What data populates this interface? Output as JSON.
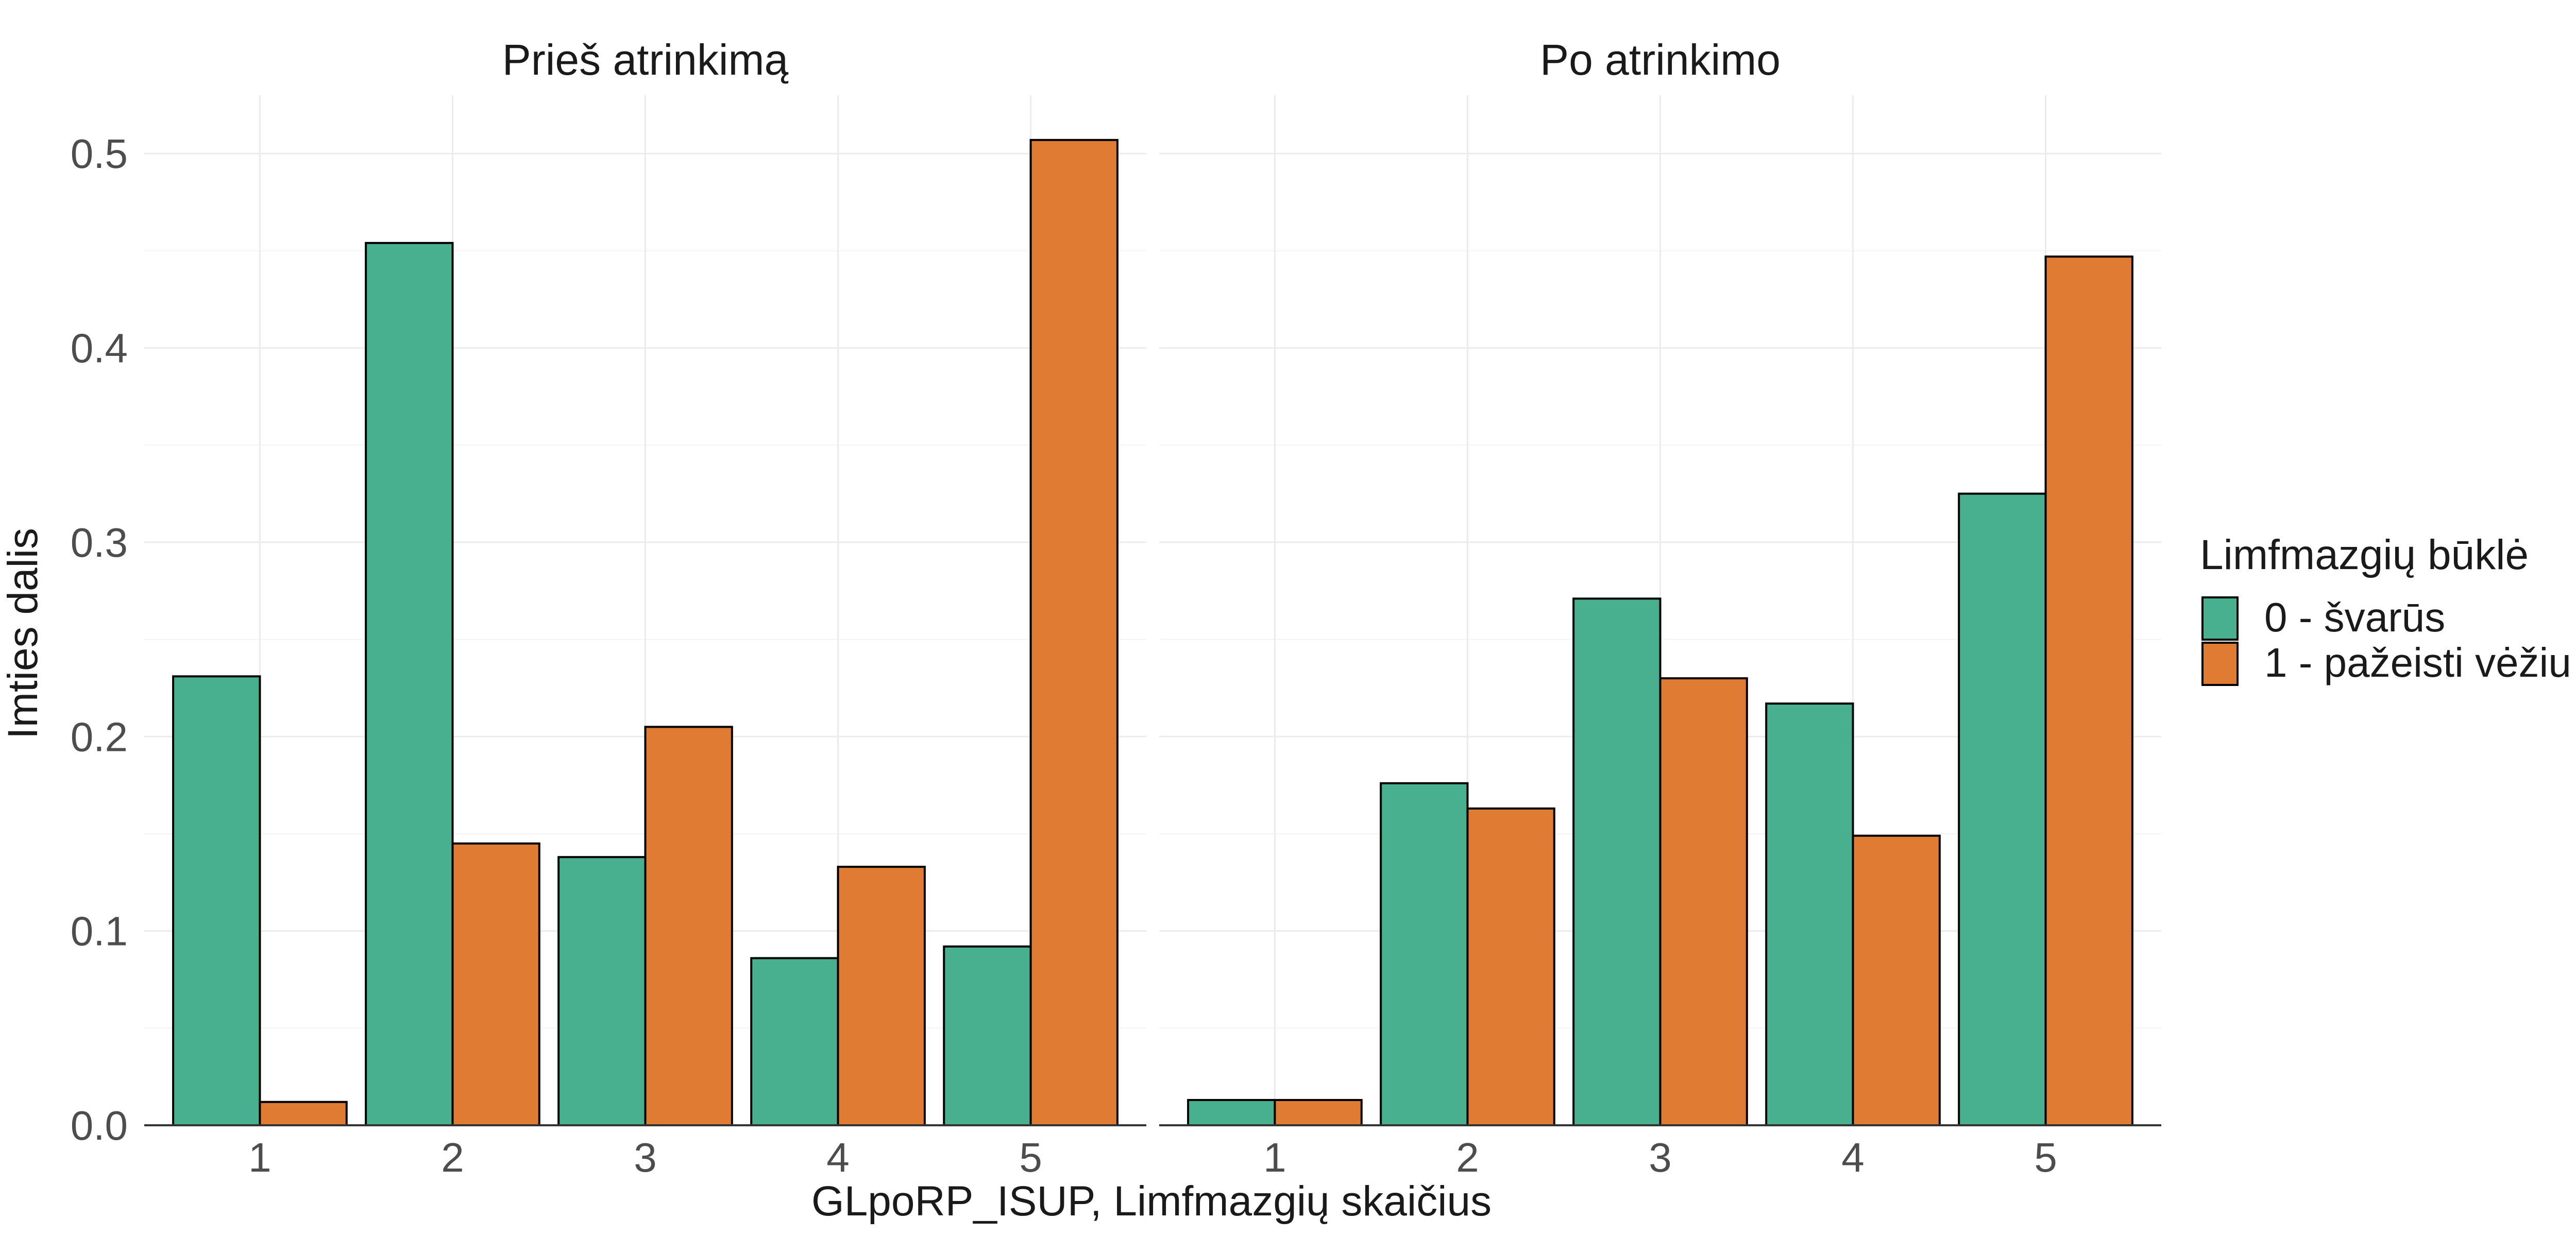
{
  "chart_data": {
    "type": "bar",
    "xlabel": "GLpoRP_ISUP, Limfmazgių skaičius",
    "ylabel": "Imties dalis",
    "ylim": [
      0,
      0.53
    ],
    "yticks": [
      "0.0",
      "0.1",
      "0.2",
      "0.3",
      "0.4",
      "0.5"
    ],
    "categories": [
      "1",
      "2",
      "3",
      "4",
      "5"
    ],
    "legend": {
      "title": "Limfmazgių būklė",
      "placement": "right",
      "entries": [
        "0 - švarūs",
        "1 - pažeisti vėžiu"
      ]
    },
    "colors": [
      "#48b08f",
      "#e07b33"
    ],
    "grid": true,
    "panels": [
      {
        "title": "Prieš atrinkimą",
        "series": [
          {
            "name": "0 - švarūs",
            "values": [
              0.231,
              0.454,
              0.138,
              0.086,
              0.092
            ]
          },
          {
            "name": "1 - pažeisti vėžiu",
            "values": [
              0.012,
              0.145,
              0.205,
              0.133,
              0.507
            ]
          }
        ]
      },
      {
        "title": "Po atrinkimo",
        "series": [
          {
            "name": "0 - švarūs",
            "values": [
              0.013,
              0.176,
              0.271,
              0.217,
              0.325
            ]
          },
          {
            "name": "1 - pažeisti vėžiu",
            "values": [
              0.013,
              0.163,
              0.23,
              0.149,
              0.447
            ]
          }
        ]
      }
    ]
  }
}
